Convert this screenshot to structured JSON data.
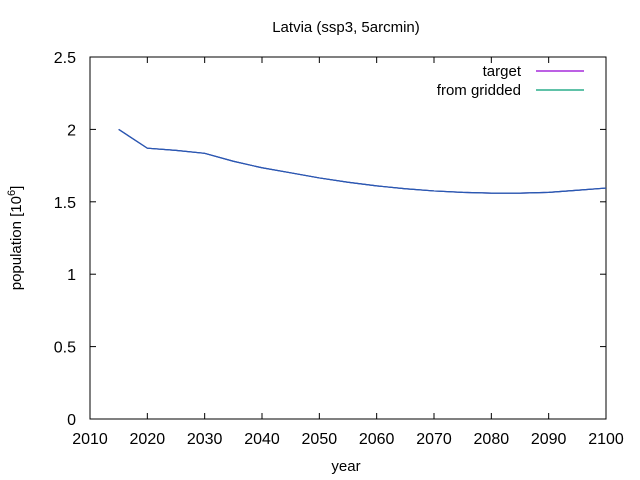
{
  "chart_data": {
    "type": "line",
    "title": "Latvia (ssp3, 5arcmin)",
    "xlabel": "year",
    "ylabel_main": "population [10",
    "ylabel_exp": "6",
    "ylabel_close": "]",
    "xlim": [
      2010,
      2100
    ],
    "ylim": [
      0,
      2.5
    ],
    "xticks": [
      2010,
      2020,
      2030,
      2040,
      2050,
      2060,
      2070,
      2080,
      2090,
      2100
    ],
    "xtick_labels": [
      "2010",
      "2020",
      "2030",
      "2040",
      "2050",
      "2060",
      "2070",
      "2080",
      "2090",
      "2100"
    ],
    "yticks": [
      0,
      0.5,
      1,
      1.5,
      2,
      2.5
    ],
    "ytick_labels": [
      "0",
      "0.5",
      "1",
      "1.5",
      "2",
      "2.5"
    ],
    "grid": false,
    "legend_position": "top-right",
    "series": [
      {
        "name": "target",
        "color": "#9400d3",
        "x": [
          2015,
          2020,
          2025,
          2030,
          2035,
          2040,
          2045,
          2050,
          2055,
          2060,
          2065,
          2070,
          2075,
          2080,
          2085,
          2090,
          2095,
          2100
        ],
        "y": [
          2.0,
          1.87,
          1.855,
          1.835,
          1.78,
          1.735,
          1.7,
          1.665,
          1.635,
          1.61,
          1.59,
          1.575,
          1.565,
          1.56,
          1.56,
          1.565,
          1.58,
          1.595
        ]
      },
      {
        "name": "from gridded",
        "color": "#009e73",
        "x": [
          2015,
          2020,
          2025,
          2030,
          2035,
          2040,
          2045,
          2050,
          2055,
          2060,
          2065,
          2070,
          2075,
          2080,
          2085,
          2090,
          2095,
          2100
        ],
        "y": [
          2.0,
          1.87,
          1.855,
          1.835,
          1.78,
          1.735,
          1.7,
          1.665,
          1.635,
          1.61,
          1.59,
          1.575,
          1.565,
          1.56,
          1.56,
          1.565,
          1.58,
          1.595
        ]
      }
    ]
  }
}
